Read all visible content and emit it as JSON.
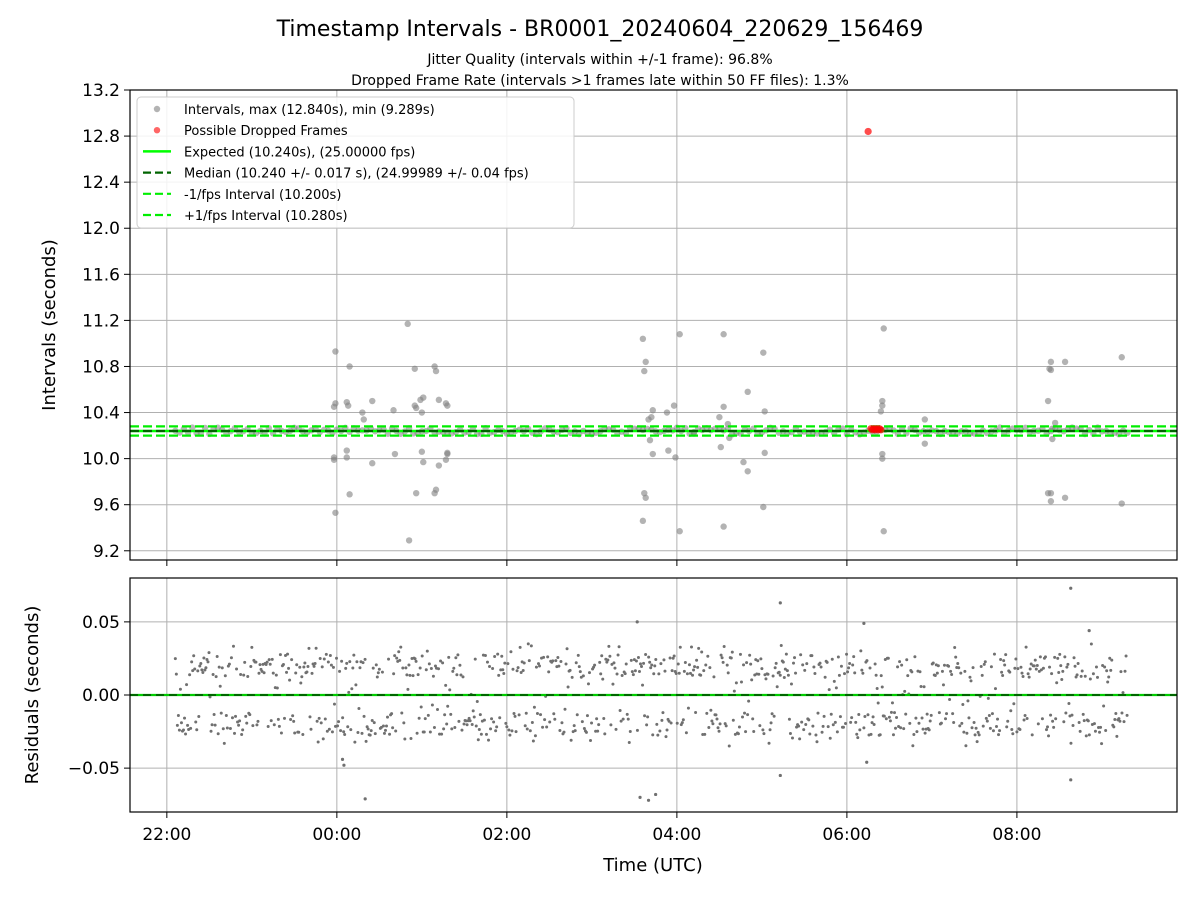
{
  "title": "Timestamp Intervals - BR0001_20240604_220629_156469",
  "subtitle_1": "Jitter Quality (intervals within +/-1 frame): 96.8%",
  "subtitle_2": "Dropped Frame Rate (intervals >1 frames late within 50 FF files): 1.3%",
  "colors": {
    "intervals": "#808080",
    "dropped": "#ff0000",
    "expected": "#00ff00",
    "median": "#006400",
    "fps_band": "#00ee00",
    "residuals": "#707070",
    "residual_zero": "#00cc00",
    "grid": "#b0b0b0"
  },
  "chart_data": [
    {
      "type": "scatter",
      "panel": "intervals",
      "xlabel": "",
      "ylabel": "Intervals (seconds)",
      "xlim": [
        "21:34",
        "09:53"
      ],
      "ylim": [
        9.12,
        13.2
      ],
      "yticks": [
        "9.2",
        "9.6",
        "10.0",
        "10.4",
        "10.8",
        "11.2",
        "11.6",
        "12.0",
        "12.4",
        "12.8",
        "13.2"
      ],
      "ytick_values": [
        9.2,
        9.6,
        10.0,
        10.4,
        10.8,
        11.2,
        11.6,
        12.0,
        12.4,
        12.8,
        13.2
      ],
      "x_range": [
        "22:06",
        "09:18"
      ],
      "legend_position": "upper-left",
      "legend": [
        "Intervals, max (12.840s), min (9.289s)",
        "Possible Dropped Frames",
        "Expected (10.240s), (25.00000 fps)",
        "Median (10.240 +/- 0.017 s), (24.99989 +/- 0.04 fps)",
        "-1/fps Interval (10.200s)",
        "+1/fps Interval (10.280s)"
      ],
      "reference_lines": {
        "expected": 10.24,
        "median": 10.24,
        "minus_1_fps": 10.2,
        "plus_1_fps": 10.28
      },
      "outliers": [
        {
          "t": "23:59",
          "y": 10.93
        },
        {
          "t": "23:59",
          "y": 10.48
        },
        {
          "t": "23:58",
          "y": 10.45
        },
        {
          "t": "23:58",
          "y": 10.01
        },
        {
          "t": "23:58",
          "y": 9.99
        },
        {
          "t": "23:59",
          "y": 9.53
        },
        {
          "t": "00:07",
          "y": 10.49
        },
        {
          "t": "00:08",
          "y": 10.46
        },
        {
          "t": "00:07",
          "y": 10.07
        },
        {
          "t": "00:07",
          "y": 10.01
        },
        {
          "t": "00:09",
          "y": 9.69
        },
        {
          "t": "00:09",
          "y": 10.8
        },
        {
          "t": "00:18",
          "y": 10.4
        },
        {
          "t": "00:19",
          "y": 10.34
        },
        {
          "t": "00:25",
          "y": 10.5
        },
        {
          "t": "00:25",
          "y": 9.96
        },
        {
          "t": "00:40",
          "y": 10.42
        },
        {
          "t": "00:41",
          "y": 10.04
        },
        {
          "t": "00:50",
          "y": 11.17
        },
        {
          "t": "00:51",
          "y": 9.29
        },
        {
          "t": "00:55",
          "y": 10.78
        },
        {
          "t": "00:55",
          "y": 10.46
        },
        {
          "t": "00:56",
          "y": 10.44
        },
        {
          "t": "00:56",
          "y": 9.7
        },
        {
          "t": "00:59",
          "y": 10.51
        },
        {
          "t": "01:00",
          "y": 10.06
        },
        {
          "t": "01:01",
          "y": 10.53
        },
        {
          "t": "01:01",
          "y": 9.97
        },
        {
          "t": "01:00",
          "y": 10.4
        },
        {
          "t": "01:09",
          "y": 10.8
        },
        {
          "t": "01:10",
          "y": 10.76
        },
        {
          "t": "01:10",
          "y": 9.73
        },
        {
          "t": "01:09",
          "y": 9.7
        },
        {
          "t": "01:12",
          "y": 10.51
        },
        {
          "t": "01:12",
          "y": 9.94
        },
        {
          "t": "01:17",
          "y": 10.48
        },
        {
          "t": "01:18",
          "y": 10.46
        },
        {
          "t": "01:18",
          "y": 10.04
        },
        {
          "t": "01:17",
          "y": 9.99
        },
        {
          "t": "01:18",
          "y": 10.05
        },
        {
          "t": "03:36",
          "y": 11.04
        },
        {
          "t": "03:37",
          "y": 10.76
        },
        {
          "t": "03:38",
          "y": 10.84
        },
        {
          "t": "03:36",
          "y": 9.46
        },
        {
          "t": "03:37",
          "y": 9.7
        },
        {
          "t": "03:38",
          "y": 9.66
        },
        {
          "t": "03:40",
          "y": 10.34
        },
        {
          "t": "03:42",
          "y": 10.36
        },
        {
          "t": "03:43",
          "y": 10.42
        },
        {
          "t": "03:41",
          "y": 10.16
        },
        {
          "t": "03:43",
          "y": 10.04
        },
        {
          "t": "03:53",
          "y": 10.4
        },
        {
          "t": "03:54",
          "y": 10.07
        },
        {
          "t": "03:58",
          "y": 10.46
        },
        {
          "t": "03:59",
          "y": 10.01
        },
        {
          "t": "04:02",
          "y": 11.08
        },
        {
          "t": "04:02",
          "y": 9.37
        },
        {
          "t": "04:12",
          "y": 10.23
        },
        {
          "t": "04:30",
          "y": 10.36
        },
        {
          "t": "04:31",
          "y": 10.1
        },
        {
          "t": "04:33",
          "y": 11.08
        },
        {
          "t": "04:33",
          "y": 9.41
        },
        {
          "t": "04:33",
          "y": 10.45
        },
        {
          "t": "04:36",
          "y": 10.3
        },
        {
          "t": "04:37",
          "y": 10.18
        },
        {
          "t": "04:50",
          "y": 10.58
        },
        {
          "t": "04:50",
          "y": 9.89
        },
        {
          "t": "04:47",
          "y": 9.97
        },
        {
          "t": "05:01",
          "y": 10.92
        },
        {
          "t": "05:01",
          "y": 9.58
        },
        {
          "t": "05:02",
          "y": 10.41
        },
        {
          "t": "05:02",
          "y": 10.05
        },
        {
          "t": "06:26",
          "y": 11.13
        },
        {
          "t": "06:26",
          "y": 9.37
        },
        {
          "t": "06:25",
          "y": 10.5
        },
        {
          "t": "06:25",
          "y": 10.46
        },
        {
          "t": "06:25",
          "y": 10.04
        },
        {
          "t": "06:25",
          "y": 10.0
        },
        {
          "t": "06:24",
          "y": 10.41
        },
        {
          "t": "06:55",
          "y": 10.34
        },
        {
          "t": "06:55",
          "y": 10.13
        },
        {
          "t": "08:23",
          "y": 10.78
        },
        {
          "t": "08:24",
          "y": 10.77
        },
        {
          "t": "08:24",
          "y": 10.84
        },
        {
          "t": "08:22",
          "y": 10.5
        },
        {
          "t": "08:22",
          "y": 9.7
        },
        {
          "t": "08:24",
          "y": 9.7
        },
        {
          "t": "08:24",
          "y": 9.63
        },
        {
          "t": "08:34",
          "y": 10.84
        },
        {
          "t": "08:34",
          "y": 9.66
        },
        {
          "t": "08:27",
          "y": 10.31
        },
        {
          "t": "08:25",
          "y": 10.26
        },
        {
          "t": "08:25",
          "y": 10.17
        },
        {
          "t": "09:14",
          "y": 10.88
        },
        {
          "t": "09:14",
          "y": 9.61
        }
      ],
      "dropped_frames": [
        {
          "t": "06:15",
          "y": 12.84
        },
        {
          "t": "06:17",
          "y": 10.26
        },
        {
          "t": "06:18",
          "y": 10.25
        },
        {
          "t": "06:19",
          "y": 10.26
        },
        {
          "t": "06:20",
          "y": 10.25
        },
        {
          "t": "06:21",
          "y": 10.26
        },
        {
          "t": "06:22",
          "y": 10.25
        },
        {
          "t": "06:23",
          "y": 10.26
        },
        {
          "t": "06:24",
          "y": 10.25
        }
      ]
    },
    {
      "type": "scatter",
      "panel": "residuals",
      "xlabel": "Time (UTC)",
      "ylabel": "Residuals (seconds)",
      "ylim": [
        -0.08,
        0.08
      ],
      "yticks": [
        "0.05",
        "0.00",
        "−0.05"
      ],
      "ytick_values": [
        0.05,
        0.0,
        -0.05
      ],
      "xticks": [
        "22:00",
        "00:00",
        "02:00",
        "04:00",
        "06:00",
        "08:00"
      ],
      "xtick_values": [
        "22:00",
        "00:00",
        "02:00",
        "04:00",
        "06:00",
        "08:00"
      ],
      "zero_line": 0.0,
      "outliers": [
        {
          "t": "00:04",
          "y": -0.044
        },
        {
          "t": "00:05",
          "y": -0.048
        },
        {
          "t": "00:20",
          "y": -0.071
        },
        {
          "t": "03:32",
          "y": 0.05
        },
        {
          "t": "03:34",
          "y": -0.07
        },
        {
          "t": "03:40",
          "y": -0.072
        },
        {
          "t": "03:45",
          "y": -0.068
        },
        {
          "t": "05:13",
          "y": 0.063
        },
        {
          "t": "05:13",
          "y": -0.055
        },
        {
          "t": "06:12",
          "y": 0.049
        },
        {
          "t": "06:14",
          "y": -0.046
        },
        {
          "t": "08:38",
          "y": 0.073
        },
        {
          "t": "08:38",
          "y": -0.058
        },
        {
          "t": "08:51",
          "y": 0.044
        }
      ]
    }
  ]
}
